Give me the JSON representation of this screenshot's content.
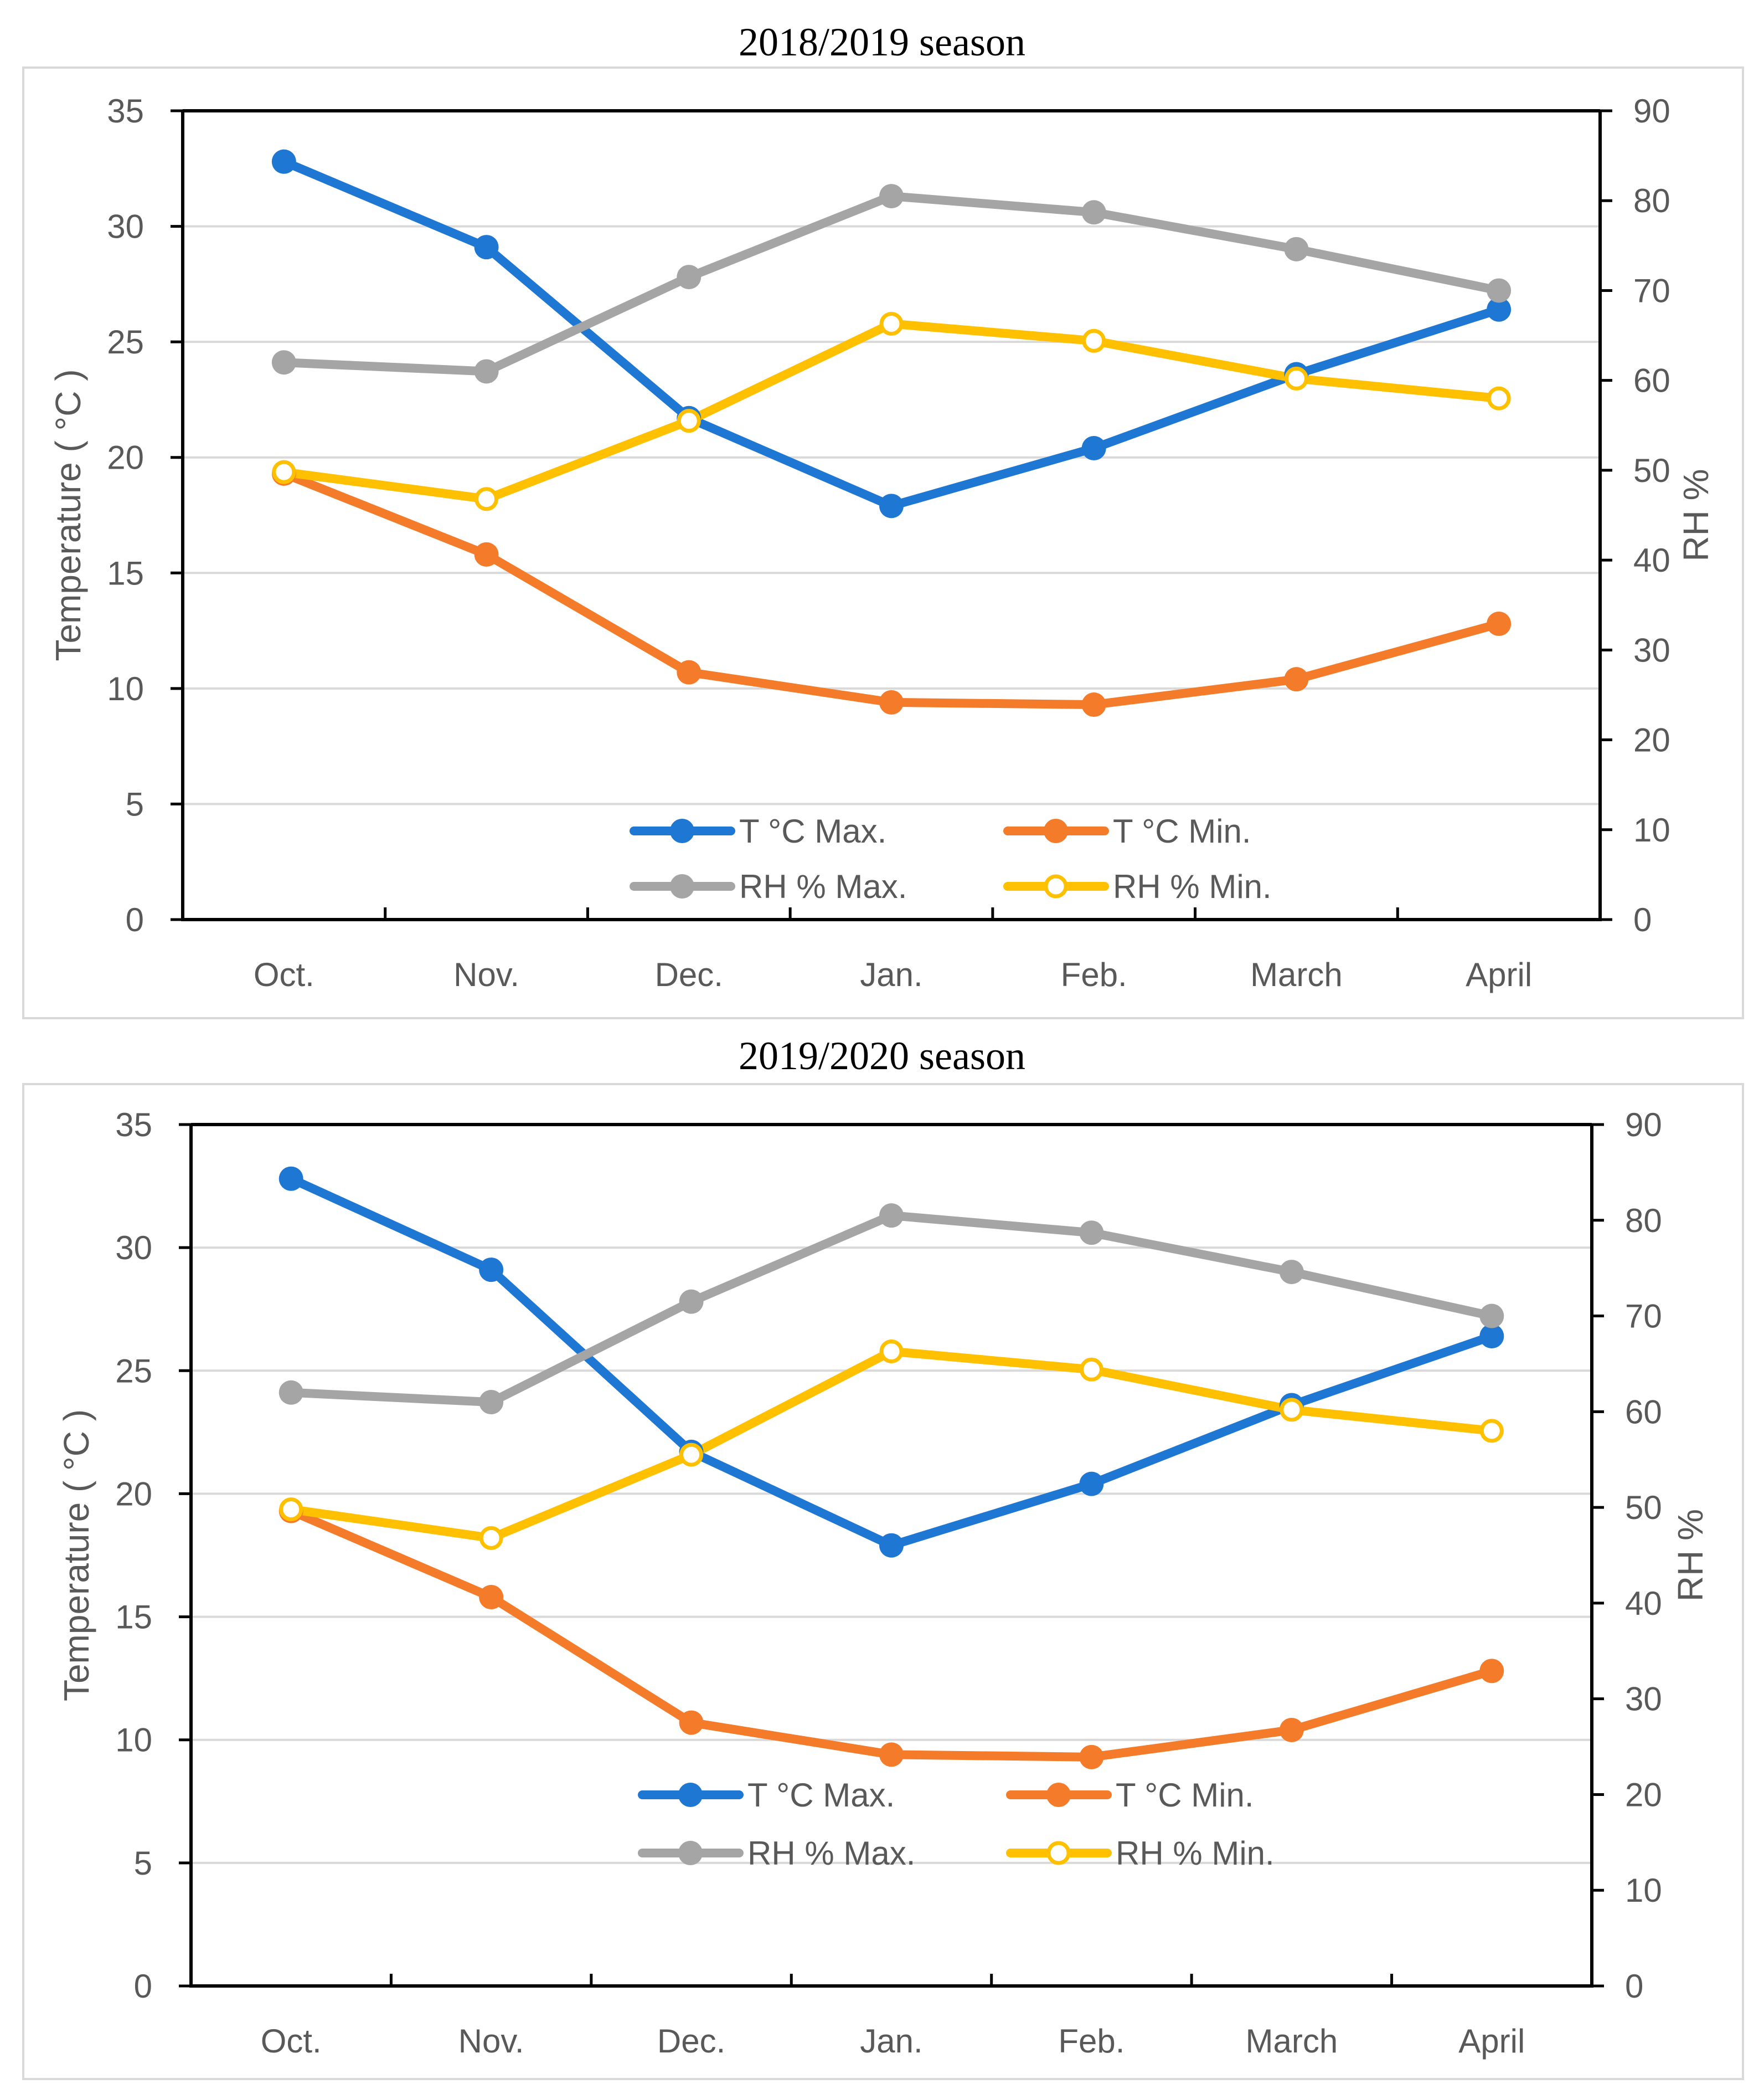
{
  "chart_data": [
    {
      "type": "line",
      "title": "2018/2019 season",
      "categories": [
        "Oct.",
        "Nov.",
        "Dec.",
        "Jan.",
        "Feb.",
        "March",
        "April"
      ],
      "ylabel": "Temperature ( °C )",
      "y2label": "RH %",
      "ylim": [
        0,
        35
      ],
      "yticks": [
        0,
        5,
        10,
        15,
        20,
        25,
        30,
        35
      ],
      "y2lim": [
        0,
        90
      ],
      "y2ticks": [
        0,
        10,
        20,
        30,
        40,
        50,
        60,
        70,
        80,
        90
      ],
      "grid": true,
      "legend_position": "bottom-center",
      "series": [
        {
          "name": "T °C Max.",
          "axis": "left",
          "color": "#1f77d4",
          "marker": "filled",
          "values": [
            32.8,
            29.1,
            21.7,
            17.9,
            20.4,
            23.6,
            26.4
          ]
        },
        {
          "name": "T °C Min.",
          "axis": "left",
          "color": "#f47b2a",
          "marker": "filled",
          "values": [
            19.3,
            15.8,
            10.7,
            9.4,
            9.3,
            10.4,
            12.8
          ]
        },
        {
          "name": "RH % Max.",
          "axis": "right",
          "color": "#a5a5a5",
          "marker": "filled",
          "values": [
            62,
            61,
            71.5,
            80.5,
            78.7,
            74.6,
            70
          ]
        },
        {
          "name": "RH % Min.",
          "axis": "right",
          "color": "#ffc000",
          "marker": "hollow",
          "values": [
            49.8,
            46.8,
            55.5,
            66.3,
            64.4,
            60.2,
            58
          ]
        }
      ]
    },
    {
      "type": "line",
      "title": "2019/2020 season",
      "categories": [
        "Oct.",
        "Nov.",
        "Dec.",
        "Jan.",
        "Feb.",
        "March",
        "April"
      ],
      "ylabel": "Temperature ( °C )",
      "y2label": "RH %",
      "ylim": [
        0,
        35
      ],
      "yticks": [
        0,
        5,
        10,
        15,
        20,
        25,
        30,
        35
      ],
      "y2lim": [
        0,
        90
      ],
      "y2ticks": [
        0,
        10,
        20,
        30,
        40,
        50,
        60,
        70,
        80,
        90
      ],
      "grid": true,
      "legend_position": "bottom-center",
      "series": [
        {
          "name": "T °C Max.",
          "axis": "left",
          "color": "#1f77d4",
          "marker": "filled",
          "values": [
            32.8,
            29.1,
            21.7,
            17.9,
            20.4,
            23.6,
            26.4
          ]
        },
        {
          "name": "T °C Min.",
          "axis": "left",
          "color": "#f47b2a",
          "marker": "filled",
          "values": [
            19.3,
            15.8,
            10.7,
            9.4,
            9.3,
            10.4,
            12.8
          ]
        },
        {
          "name": "RH % Max.",
          "axis": "right",
          "color": "#a5a5a5",
          "marker": "filled",
          "values": [
            62,
            61,
            71.5,
            80.5,
            78.7,
            74.6,
            70
          ]
        },
        {
          "name": "RH % Min.",
          "axis": "right",
          "color": "#ffc000",
          "marker": "hollow",
          "values": [
            49.8,
            46.8,
            55.5,
            66.3,
            64.4,
            60.2,
            58
          ]
        }
      ]
    }
  ]
}
